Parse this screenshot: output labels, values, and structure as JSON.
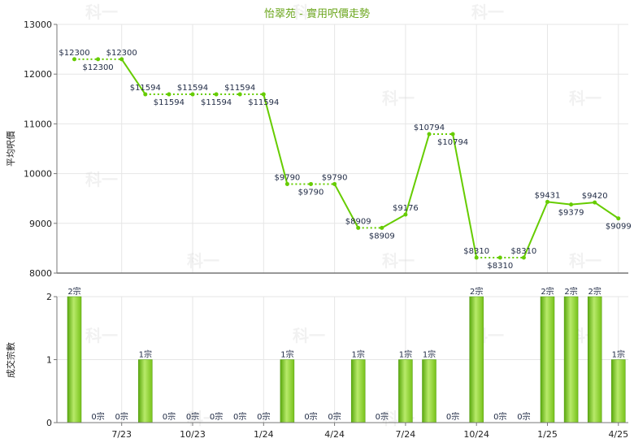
{
  "chart_data": {
    "title": "怡翠苑 - 實用呎價走勢",
    "watermark": "科一",
    "top": {
      "type": "line",
      "ylabel": "平均呎價",
      "ylim": [
        8000,
        13000
      ],
      "yticks": [
        8000,
        9000,
        10000,
        11000,
        12000,
        13000
      ],
      "values": [
        12300,
        12300,
        12300,
        11594,
        11594,
        11594,
        11594,
        11594,
        11594,
        9790,
        9790,
        9790,
        8909,
        8909,
        9176,
        10794,
        10794,
        8310,
        8310,
        8310,
        9431,
        9379,
        9420,
        9099
      ],
      "labels": [
        "$12300",
        "$12300",
        "$12300",
        "$11594",
        "$11594",
        "$11594",
        "$11594",
        "$11594",
        "$11594",
        "$9790",
        "$9790",
        "$9790",
        "$8909",
        "$8909",
        "$9176",
        "$10794",
        "$10794",
        "$8310",
        "$8310",
        "$8310",
        "$9431",
        "$9379",
        "$9420",
        "$9099"
      ],
      "dotted_segments": [
        0,
        1,
        3,
        4,
        5,
        6,
        7,
        9,
        10,
        12,
        15,
        17,
        18
      ],
      "line_color": "#66cc00"
    },
    "bottom": {
      "type": "bar",
      "ylabel": "成交宗數",
      "ylim": [
        0,
        2
      ],
      "yticks": [
        0,
        1,
        2
      ],
      "values": [
        2,
        0,
        0,
        1,
        0,
        0,
        0,
        0,
        0,
        1,
        0,
        0,
        1,
        0,
        1,
        1,
        0,
        2,
        0,
        0,
        2,
        2,
        2,
        1
      ],
      "labels": [
        "2宗",
        "0宗",
        "0宗",
        "1宗",
        "0宗",
        "0宗",
        "0宗",
        "0宗",
        "0宗",
        "1宗",
        "0宗",
        "0宗",
        "1宗",
        "0宗",
        "1宗",
        "1宗",
        "0宗",
        "2宗",
        "0宗",
        "0宗",
        "2宗",
        "2宗",
        "2宗",
        "1宗"
      ],
      "bar_color": "#77c21a"
    },
    "x_ticks": [
      {
        "index": 2,
        "label": "7/23"
      },
      {
        "index": 5,
        "label": "10/23"
      },
      {
        "index": 8,
        "label": "1/24"
      },
      {
        "index": 11,
        "label": "4/24"
      },
      {
        "index": 14,
        "label": "7/24"
      },
      {
        "index": 17,
        "label": "10/24"
      },
      {
        "index": 20,
        "label": "1/25"
      },
      {
        "index": 23,
        "label": "4/25"
      }
    ]
  }
}
